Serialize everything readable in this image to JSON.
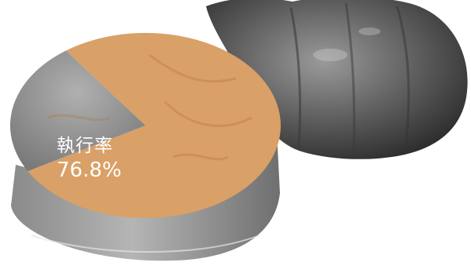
{
  "chart_data": {
    "type": "pie",
    "slices": [
      {
        "label": "執行率",
        "value": 76.8,
        "unit": "%",
        "color": "#d9a067"
      },
      {
        "label": "",
        "value": 23.2,
        "unit": "%",
        "color": "#9c9c9c"
      }
    ],
    "annotation": {
      "title": "執行率",
      "value_text": "76.8%"
    }
  }
}
